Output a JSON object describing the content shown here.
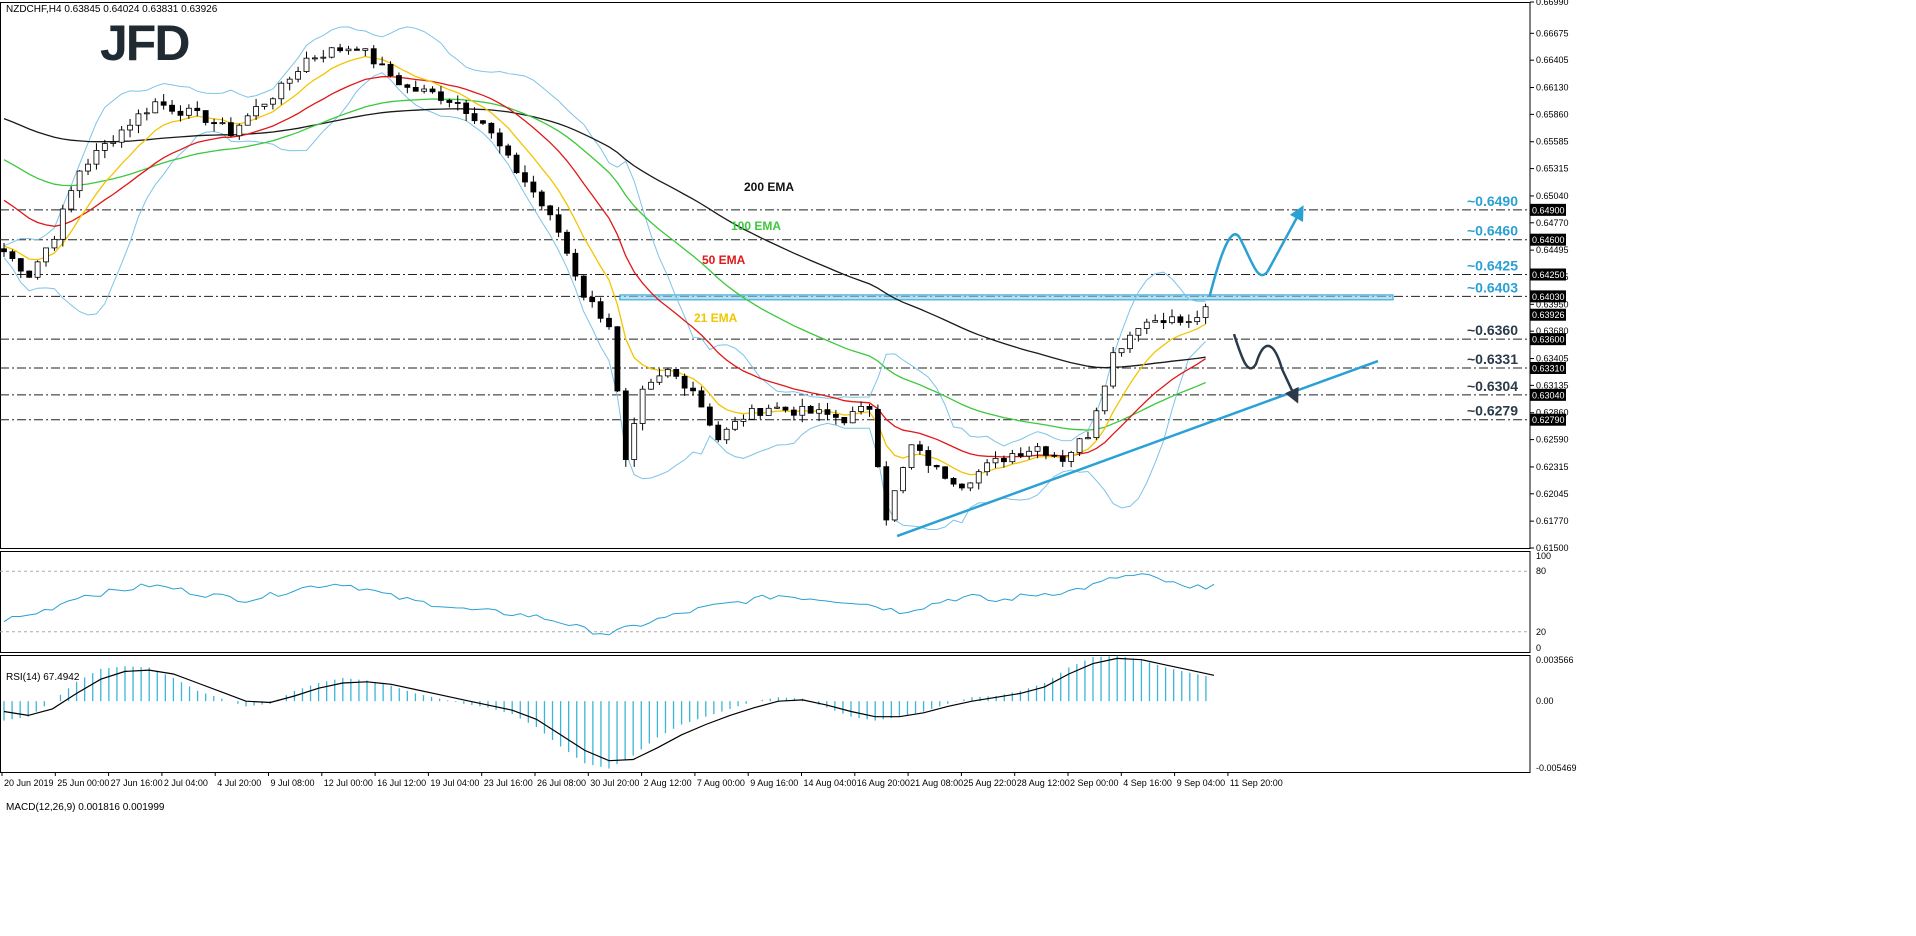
{
  "header": {
    "symbol_line": "NZDCHF,H4 0.63845 0.64024 0.63831 0.63926",
    "logo": "JFD"
  },
  "chart_data": [
    {
      "type": "candlestick",
      "panel": "price",
      "ylim": [
        0.615,
        0.6699
      ],
      "right_axis_ticks": [
        "0.66990",
        "0.66675",
        "0.66405",
        "0.66130",
        "0.65860",
        "0.65585",
        "0.65315",
        "0.65040",
        "0.64770",
        "0.64495",
        "0.64225",
        "0.63950",
        "0.63680",
        "0.63405",
        "0.63135",
        "0.62860",
        "0.62590",
        "0.62315",
        "0.62045",
        "0.61770",
        "0.61500"
      ],
      "x_ticks": [
        "20 Jun 2019",
        "25 Jun 00:00",
        "27 Jun 16:00",
        "2 Jul 04:00",
        "4 Jul 20:00",
        "9 Jul 08:00",
        "12 Jul 00:00",
        "16 Jul 12:00",
        "19 Jul 04:00",
        "23 Jul 16:00",
        "26 Jul 08:00",
        "30 Jul 20:00",
        "2 Aug 12:00",
        "7 Aug 00:00",
        "9 Aug 16:00",
        "14 Aug 04:00",
        "16 Aug 20:00",
        "21 Aug 08:00",
        "25 Aug 22:00",
        "28 Aug 12:00",
        "2 Sep 00:00",
        "4 Sep 16:00",
        "9 Sep 04:00",
        "11 Sep 20:00"
      ],
      "last_candle": {
        "open": "0.63845",
        "high": "0.64024",
        "low": "0.63831",
        "close": "0.63926"
      },
      "price_path": [
        [
          0,
          0.6448
        ],
        [
          3,
          0.6425
        ],
        [
          6,
          0.6465
        ],
        [
          9,
          0.653
        ],
        [
          12,
          0.6555
        ],
        [
          15,
          0.6578
        ],
        [
          18,
          0.6598
        ],
        [
          21,
          0.659
        ],
        [
          24,
          0.6582
        ],
        [
          27,
          0.6568
        ],
        [
          30,
          0.6592
        ],
        [
          33,
          0.6612
        ],
        [
          36,
          0.6642
        ],
        [
          39,
          0.665
        ],
        [
          42,
          0.6655
        ],
        [
          45,
          0.6632
        ],
        [
          48,
          0.6612
        ],
        [
          51,
          0.6607
        ],
        [
          54,
          0.6598
        ],
        [
          57,
          0.6578
        ],
        [
          60,
          0.654
        ],
        [
          63,
          0.6508
        ],
        [
          66,
          0.6468
        ],
        [
          69,
          0.6405
        ],
        [
          72,
          0.6375
        ],
        [
          74,
          0.6235
        ],
        [
          76,
          0.6305
        ],
        [
          79,
          0.6328
        ],
        [
          82,
          0.631
        ],
        [
          85,
          0.626
        ],
        [
          88,
          0.6282
        ],
        [
          91,
          0.6292
        ],
        [
          94,
          0.6288
        ],
        [
          97,
          0.6285
        ],
        [
          100,
          0.628
        ],
        [
          103,
          0.6292
        ],
        [
          105,
          0.6182
        ],
        [
          108,
          0.6252
        ],
        [
          111,
          0.6228
        ],
        [
          114,
          0.6215
        ],
        [
          117,
          0.6232
        ],
        [
          120,
          0.6245
        ],
        [
          123,
          0.6252
        ],
        [
          126,
          0.624
        ],
        [
          129,
          0.6265
        ],
        [
          132,
          0.6345
        ],
        [
          135,
          0.6375
        ],
        [
          138,
          0.6382
        ],
        [
          141,
          0.6375
        ],
        [
          143,
          0.6392
        ]
      ],
      "levels": [
        {
          "label": "~0.6490",
          "value": 0.649,
          "axis_label": "0.64900",
          "color": "#2aa0d4"
        },
        {
          "label": "~0.6460",
          "value": 0.646,
          "axis_label": "0.64600",
          "color": "#2aa0d4"
        },
        {
          "label": "~0.6425",
          "value": 0.6425,
          "axis_label": "0.64250",
          "color": "#2aa0d4"
        },
        {
          "label": "~0.6403",
          "value": 0.6403,
          "axis_label": "0.64030",
          "color": "#2aa0d4"
        },
        {
          "label": "~0.6360",
          "value": 0.636,
          "axis_label": "0.63600",
          "color": "#2b3a4a"
        },
        {
          "label": "~0.6331",
          "value": 0.6331,
          "axis_label": "0.63310",
          "color": "#2b3a4a"
        },
        {
          "label": "~0.6304",
          "value": 0.6304,
          "axis_label": "0.63040",
          "color": "#2b3a4a"
        },
        {
          "label": "~0.6279",
          "value": 0.6279,
          "axis_label": "0.62790",
          "color": "#2b3a4a"
        }
      ],
      "current_price_label": "0.63926",
      "ema_labels": [
        {
          "label": "200 EMA",
          "color": "#111111"
        },
        {
          "label": "100 EMA",
          "color": "#3cc83c"
        },
        {
          "label": "50 EMA",
          "color": "#e01818"
        },
        {
          "label": "21 EMA",
          "color": "#f2c500"
        }
      ],
      "colors": {
        "ema200": "#1a1a1a",
        "ema100": "#3cc83c",
        "ema50": "#e01818",
        "ema21": "#f2c500",
        "bollinger": "#7ec3e8",
        "resistance_zone": "#8fd0ea",
        "trendline": "#2aa0d4",
        "arrow_up": "#2aa0d4",
        "arrow_down": "#2b3a4a"
      }
    },
    {
      "type": "line",
      "panel": "rsi",
      "title": "RSI(14) 67.4942",
      "ylim": [
        0,
        100
      ],
      "axis_ticks": [
        "100",
        "80",
        "20",
        "0"
      ],
      "values": [
        32,
        36,
        44,
        55,
        58,
        62,
        66,
        63,
        58,
        55,
        52,
        56,
        62,
        66,
        68,
        62,
        55,
        50,
        47,
        42,
        40,
        38,
        35,
        30,
        22,
        18,
        25,
        32,
        38,
        44,
        48,
        52,
        56,
        54,
        52,
        50,
        46,
        40,
        45,
        52,
        55,
        50,
        55,
        58,
        60,
        66,
        74,
        76,
        70,
        62,
        67
      ]
    },
    {
      "type": "bar+line",
      "panel": "macd",
      "title": "MACD(12,26,9) 0.001816 0.001999",
      "ylim": [
        -0.005469,
        0.003566
      ],
      "axis_ticks": [
        "0.003566",
        "0.00",
        "-0.005469"
      ],
      "histogram": [
        -0.0015,
        -0.0012,
        0,
        0.0015,
        0.0025,
        0.0027,
        0.0026,
        0.0018,
        0.0008,
        0.0002,
        -0.0004,
        -0.0002,
        0.0008,
        0.0014,
        0.0018,
        0.0016,
        0.0012,
        0.0006,
        0.0002,
        -0.0002,
        -0.0005,
        -0.001,
        -0.002,
        -0.0035,
        -0.0048,
        -0.0052,
        -0.0042,
        -0.0028,
        -0.0018,
        -0.0012,
        -0.0006,
        0,
        0.0003,
        0.0002,
        -0.0005,
        -0.0012,
        -0.0015,
        -0.0012,
        -0.0008,
        -0.0002,
        0.0003,
        0.0004,
        0.0008,
        0.0014,
        0.0026,
        0.0034,
        0.0035,
        0.0032,
        0.0026,
        0.0022,
        0.0018
      ],
      "signal": [
        -0.0008,
        -0.0011,
        -0.0006,
        0.0006,
        0.0017,
        0.0023,
        0.0024,
        0.0021,
        0.0014,
        0.0007,
        0,
        -0.0001,
        0.0004,
        0.001,
        0.0014,
        0.0015,
        0.0013,
        0.0009,
        0.0005,
        0.0001,
        -0.0003,
        -0.0007,
        -0.0014,
        -0.0026,
        -0.0038,
        -0.0046,
        -0.0045,
        -0.0036,
        -0.0026,
        -0.0018,
        -0.0011,
        -0.0005,
        0,
        0.0001,
        -0.0003,
        -0.0008,
        -0.0012,
        -0.0012,
        -0.0009,
        -0.0004,
        0,
        0.0003,
        0.0006,
        0.0011,
        0.0021,
        0.0029,
        0.0033,
        0.0032,
        0.0028,
        0.0024,
        0.002
      ]
    }
  ]
}
